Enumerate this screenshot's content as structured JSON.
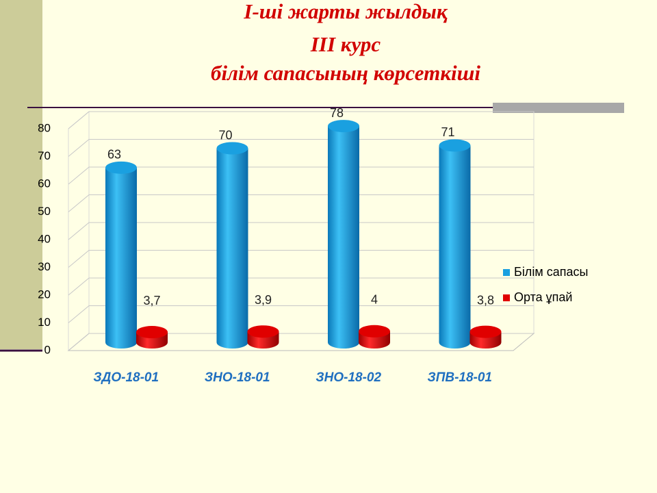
{
  "chart_data": {
    "type": "bar",
    "title": [
      "I-ші жарты жылдық",
      "III курс",
      "білім сапасының көрсеткіші"
    ],
    "categories": [
      "ЗДО-18-01",
      "ЗНО-18-01",
      "ЗНО-18-02",
      "ЗПВ-18-01"
    ],
    "series": [
      {
        "name": "Білім сапасы",
        "color": "#1aa0e0",
        "values": [
          63,
          70,
          78,
          71
        ]
      },
      {
        "name": "Орта ұпай",
        "color": "#e00000",
        "values": [
          3.7,
          3.9,
          4,
          3.8
        ],
        "value_labels": [
          "3,7",
          "3,9",
          "4",
          "3,8"
        ]
      }
    ],
    "ylim": [
      0,
      80
    ],
    "yticks": [
      0,
      10,
      20,
      30,
      40,
      50,
      60,
      70,
      80
    ],
    "grid": true,
    "legend": "right"
  }
}
